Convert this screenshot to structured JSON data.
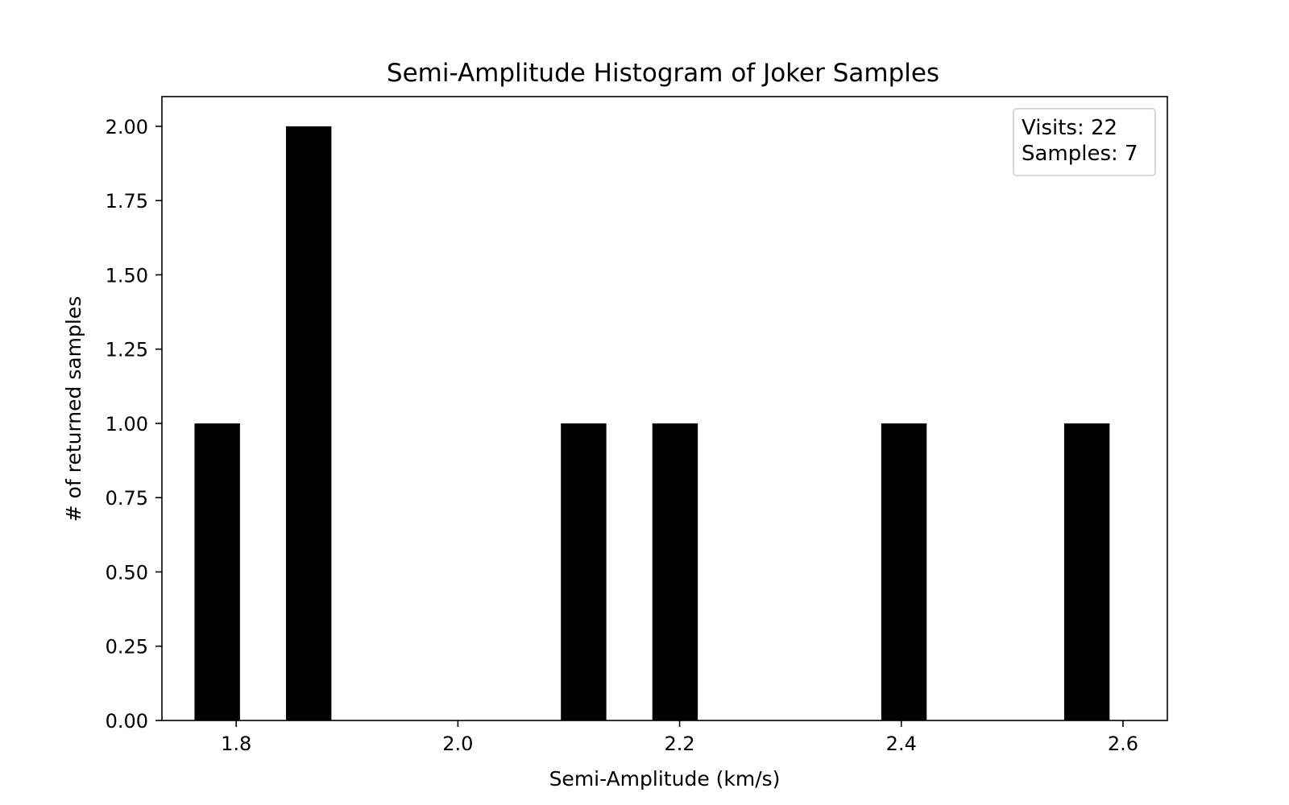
{
  "chart_data": {
    "type": "bar",
    "title": "Semi-Amplitude Histogram of Joker Samples",
    "xlabel": "Semi-Amplitude (km/s)",
    "ylabel": "# of returned samples",
    "xlim": [
      1.733,
      2.64
    ],
    "ylim": [
      0,
      2.1
    ],
    "bin_width": 0.041,
    "bars": [
      {
        "x_left": 1.7624,
        "x_right": 1.8034,
        "count": 1
      },
      {
        "x_left": 1.8449,
        "x_right": 1.8859,
        "count": 2
      },
      {
        "x_left": 2.0929,
        "x_right": 2.1339,
        "count": 1
      },
      {
        "x_left": 2.1754,
        "x_right": 2.2164,
        "count": 1
      },
      {
        "x_left": 2.3819,
        "x_right": 2.4229,
        "count": 1
      },
      {
        "x_left": 2.5469,
        "x_right": 2.5879,
        "count": 1
      }
    ],
    "x_ticks": [
      {
        "value": 1.8,
        "label": "1.8"
      },
      {
        "value": 2.0,
        "label": "2.0"
      },
      {
        "value": 2.2,
        "label": "2.2"
      },
      {
        "value": 2.4,
        "label": "2.4"
      },
      {
        "value": 2.6,
        "label": "2.6"
      }
    ],
    "y_ticks": [
      {
        "value": 0.0,
        "label": "0.00"
      },
      {
        "value": 0.25,
        "label": "0.25"
      },
      {
        "value": 0.5,
        "label": "0.50"
      },
      {
        "value": 0.75,
        "label": "0.75"
      },
      {
        "value": 1.0,
        "label": "1.00"
      },
      {
        "value": 1.25,
        "label": "1.25"
      },
      {
        "value": 1.5,
        "label": "1.50"
      },
      {
        "value": 1.75,
        "label": "1.75"
      },
      {
        "value": 2.0,
        "label": "2.00"
      }
    ],
    "bar_color": "#000000",
    "grid": false,
    "legend_placement": "top-right",
    "legend_lines": [
      "Visits: 22",
      "Samples: 7"
    ]
  }
}
